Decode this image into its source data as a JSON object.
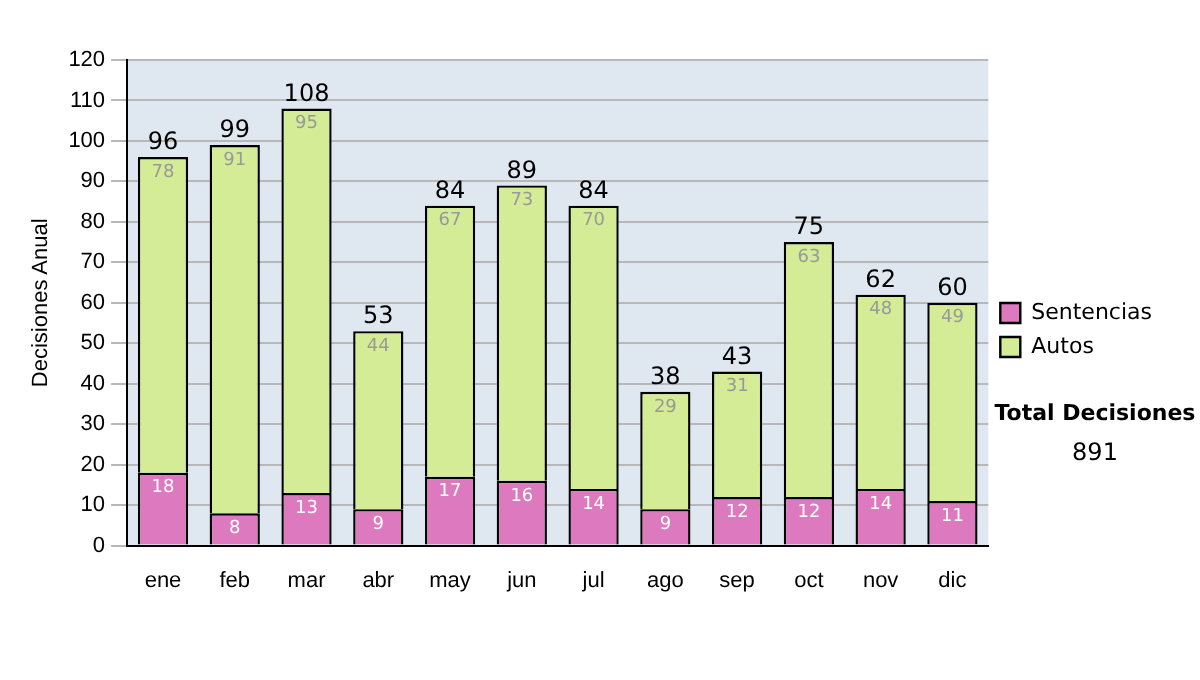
{
  "chart_data": {
    "type": "bar",
    "stacked": true,
    "ylabel": "Decisiones Anual",
    "categories": [
      "ene",
      "feb",
      "mar",
      "abr",
      "may",
      "jun",
      "jul",
      "ago",
      "sep",
      "oct",
      "nov",
      "dic"
    ],
    "series": [
      {
        "name": "Sentencias",
        "color": "#dd7abf",
        "values": [
          18,
          8,
          13,
          9,
          17,
          16,
          14,
          9,
          12,
          12,
          14,
          11
        ]
      },
      {
        "name": "Autos",
        "color": "#d4ec96",
        "values": [
          78,
          91,
          95,
          44,
          67,
          73,
          70,
          29,
          31,
          63,
          48,
          49
        ]
      }
    ],
    "ylim": [
      0,
      120
    ],
    "yticks": [
      0,
      10,
      20,
      30,
      40,
      50,
      60,
      70,
      80,
      90,
      100,
      110,
      120
    ],
    "grid": "y",
    "legend": "right",
    "data_labels": true,
    "totals": [
      "96",
      "99",
      "108",
      "53",
      "84",
      "89",
      "84",
      "38",
      "43",
      "75",
      "62",
      "60"
    ],
    "annotations": [
      "Total Decisiones",
      "891"
    ]
  }
}
